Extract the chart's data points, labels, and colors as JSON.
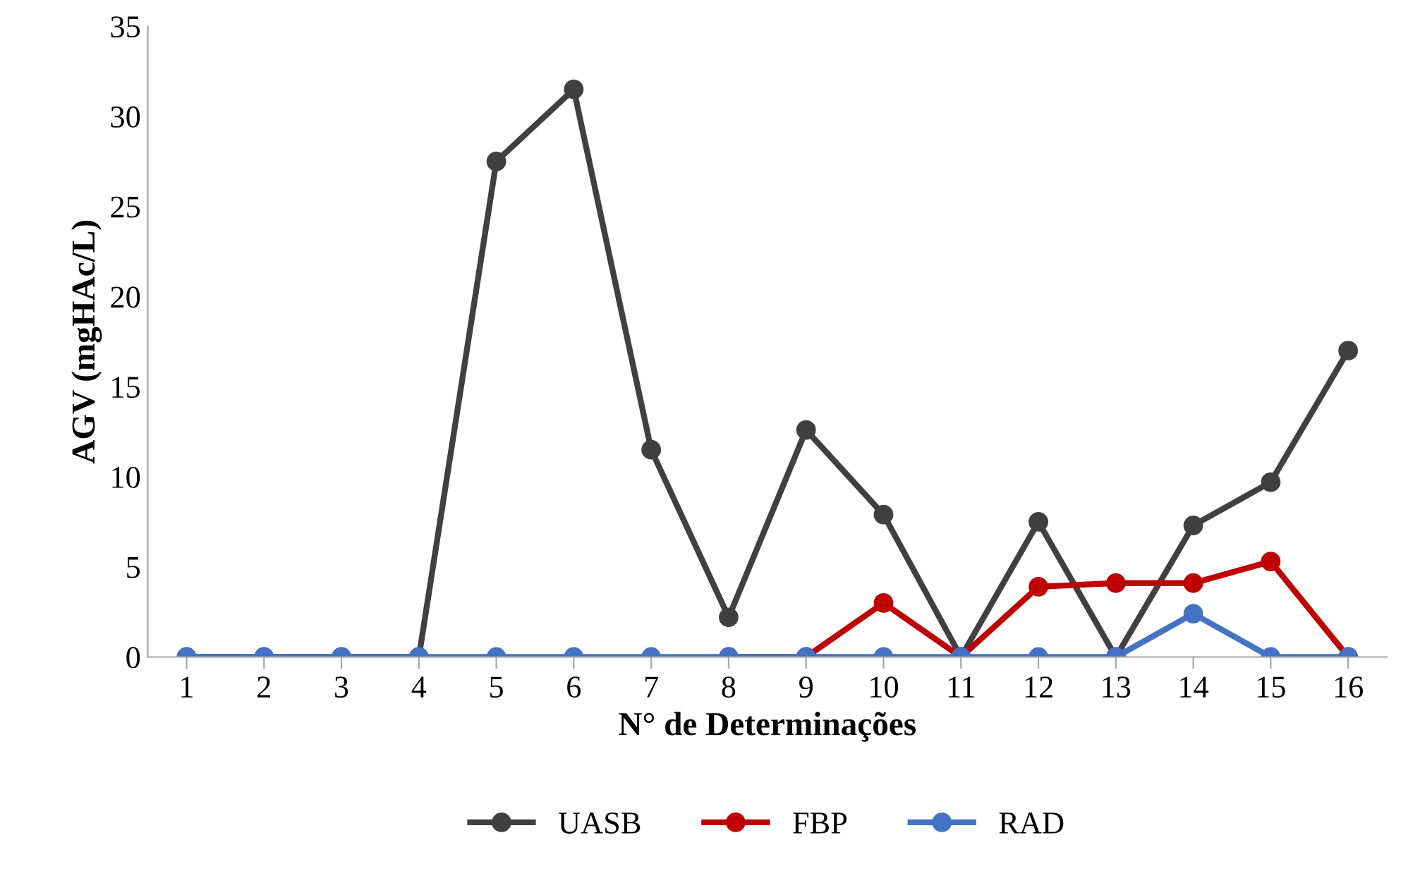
{
  "chart_data": {
    "type": "line",
    "xlabel": "N° de Determinações",
    "ylabel": "AGV (mgHAc/L)",
    "categories": [
      "1",
      "2",
      "3",
      "4",
      "5",
      "6",
      "7",
      "8",
      "9",
      "10",
      "11",
      "12",
      "13",
      "14",
      "15",
      "16"
    ],
    "series": [
      {
        "name": "UASB",
        "color": "#404040",
        "values": [
          0,
          0,
          0,
          0,
          27.5,
          31.5,
          11.5,
          2.2,
          12.6,
          7.9,
          0,
          7.5,
          0,
          7.3,
          9.7,
          17.0
        ]
      },
      {
        "name": "FBP",
        "color": "#c00000",
        "values": [
          null,
          null,
          null,
          null,
          null,
          null,
          null,
          0,
          0,
          3.0,
          0,
          3.9,
          4.1,
          4.1,
          5.3,
          0
        ]
      },
      {
        "name": "RAD",
        "color": "#4472c4",
        "values": [
          0,
          0,
          0,
          0,
          0,
          0,
          0,
          0,
          0,
          0,
          0,
          0,
          0,
          2.4,
          0,
          0
        ]
      }
    ],
    "ylim": [
      0,
      35
    ],
    "yticks": [
      0,
      5,
      10,
      15,
      20,
      25,
      30,
      35
    ],
    "grid": false,
    "legend": "bottom",
    "marker": "circle",
    "line_style": "solid"
  }
}
